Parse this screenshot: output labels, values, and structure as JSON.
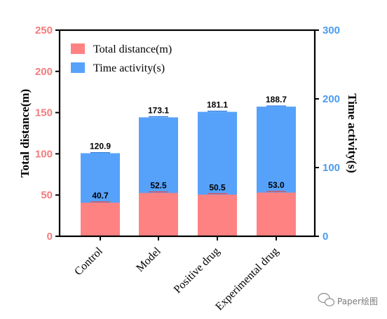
{
  "chart_data": {
    "type": "bar",
    "categories": [
      "Control",
      "Model",
      "Positive drug",
      "Experimental drug"
    ],
    "series": [
      {
        "name": "Time activity(s)",
        "axis": "right",
        "values": [
          120.9,
          173.1,
          181.1,
          188.7
        ],
        "errors": [
          0.8,
          0.9,
          1.0,
          0.9
        ],
        "color": "#56a2fb"
      },
      {
        "name": "Total distance(m)",
        "axis": "left",
        "values": [
          40.7,
          52.5,
          50.5,
          53.0
        ],
        "errors": [
          1.0,
          1.3,
          1.1,
          1.4
        ],
        "color": "#ff8282"
      }
    ],
    "data_labels": {
      "distance": [
        "40.7",
        "52.5",
        "50.5",
        "53.0"
      ],
      "time": [
        "120.9",
        "173.1",
        "181.1",
        "188.7"
      ]
    },
    "ylabel": "Total distance(m)",
    "ylabel_right": "Time activity(s)",
    "ylim": [
      0,
      250
    ],
    "ylim_right": [
      0,
      300
    ],
    "yticks": [
      "0",
      "50",
      "100",
      "150",
      "200",
      "250"
    ],
    "yticks_right": [
      "0",
      "100",
      "200",
      "300"
    ],
    "legend": {
      "position": "top-left",
      "entries": [
        "Total distance(m)",
        "Time activity(s)"
      ]
    },
    "grid": false,
    "left_axis_color": "#f47c7c",
    "right_axis_color": "#4a9bef"
  },
  "watermark": {
    "text": "Paper绘图",
    "icon": "wechat-icon"
  }
}
